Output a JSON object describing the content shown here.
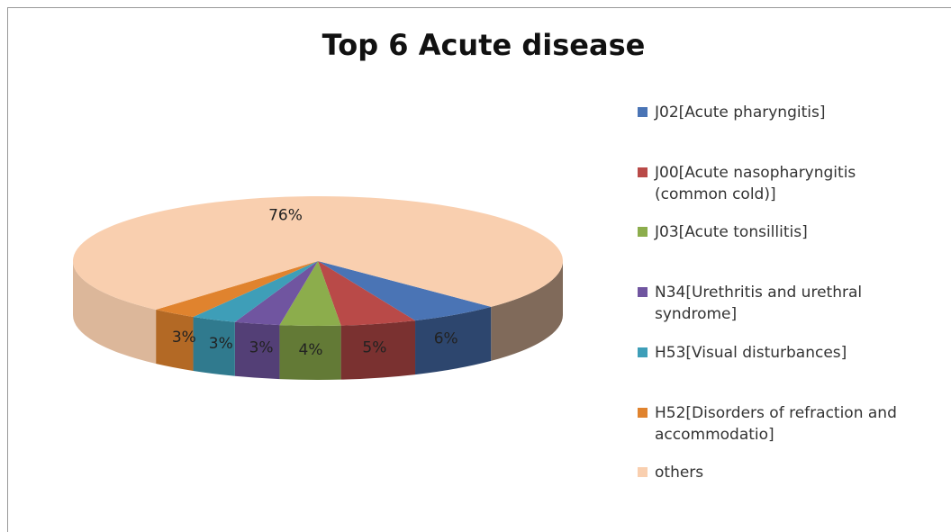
{
  "chart_data": {
    "type": "pie",
    "title": "Top 6 Acute disease",
    "categories": [
      "J02[Acute pharyngitis]",
      "J00[Acute nasopharyngitis (common cold)]",
      "J03[Acute tonsillitis]",
      "N34[Urethritis and urethral syndrome]",
      "H53[Visual disturbances]",
      "H52[Disorders of refraction and accommodatio]",
      "others"
    ],
    "values": [
      6,
      5,
      4,
      3,
      3,
      3,
      76
    ],
    "value_labels": [
      "6%",
      "5%",
      "4%",
      "3%",
      "3%",
      "3%",
      "76%"
    ],
    "colors": [
      "#4a74b5",
      "#b94a48",
      "#8cad4c",
      "#7055a0",
      "#3e9eb8",
      "#e0832e",
      "#f9cfaf"
    ],
    "legend": "right"
  }
}
